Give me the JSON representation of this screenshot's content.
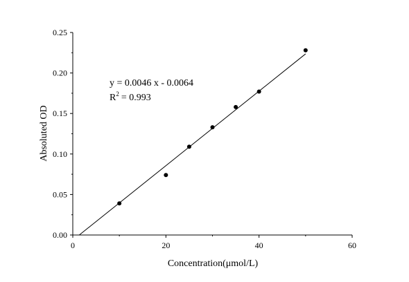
{
  "chart_data": {
    "type": "scatter",
    "title": "",
    "xlabel": "Concentration(μmol/L)",
    "ylabel": "Absoluted OD",
    "xlim": [
      0,
      60
    ],
    "ylim": [
      0,
      0.25
    ],
    "x_ticks": [
      "0",
      "20",
      "40",
      "60"
    ],
    "y_ticks": [
      "0.00",
      "0.05",
      "0.10",
      "0.15",
      "0.20",
      "0.25"
    ],
    "grid": false,
    "series": [
      {
        "x": [
          10,
          20,
          25,
          30,
          35,
          40,
          50
        ],
        "y": [
          0.039,
          0.074,
          0.109,
          0.133,
          0.158,
          0.177,
          0.228
        ]
      }
    ],
    "fit_line": {
      "slope": 0.0046,
      "intercept": -0.0064,
      "x_range": [
        0,
        50
      ]
    },
    "annotations": {
      "equation": "y = 0.0046 x - 0.0064",
      "r2_prefix": "R",
      "r2_sup": "2",
      "r2_value": "=  0.993"
    }
  }
}
